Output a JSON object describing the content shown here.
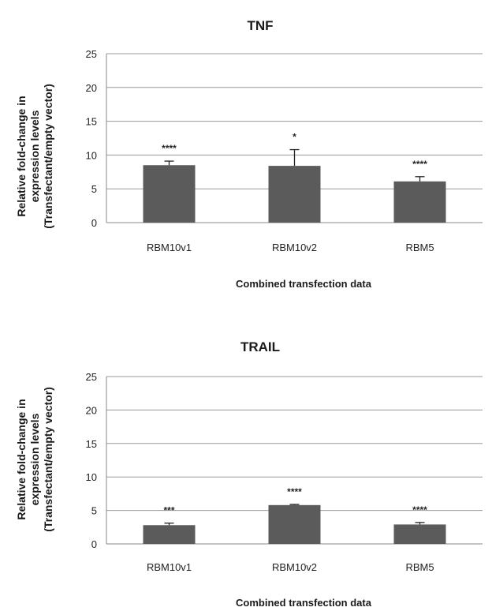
{
  "chart_data": [
    {
      "type": "bar",
      "title": "TNF",
      "xlabel": "Combined transfection data",
      "ylabel": [
        "Relative fold-change in",
        "expression levels",
        "(Transfectant/empty vector)"
      ],
      "categories": [
        "RBM10v1",
        "RBM10v2",
        "RBM5"
      ],
      "values": [
        8.5,
        8.4,
        6.1
      ],
      "errors": [
        0.6,
        2.4,
        0.7
      ],
      "significance": [
        "****",
        "*",
        "****"
      ],
      "ylim": [
        0,
        25
      ],
      "yticks": [
        0,
        5,
        10,
        15,
        20,
        25
      ],
      "grid": true,
      "bar_color": "#5b5b5b"
    },
    {
      "type": "bar",
      "title": "TRAIL",
      "xlabel": "Combined transfection data",
      "ylabel": [
        "Relative fold-change in",
        "expression levels",
        "(Transfectant/empty vector)"
      ],
      "categories": [
        "RBM10v1",
        "RBM10v2",
        "RBM5"
      ],
      "values": [
        2.8,
        5.8,
        2.9
      ],
      "errors": [
        0.3,
        0.1,
        0.3
      ],
      "significance": [
        "***",
        "****",
        "****"
      ],
      "ylim": [
        0,
        25
      ],
      "yticks": [
        0,
        5,
        10,
        15,
        20,
        25
      ],
      "grid": true,
      "bar_color": "#5b5b5b"
    }
  ]
}
